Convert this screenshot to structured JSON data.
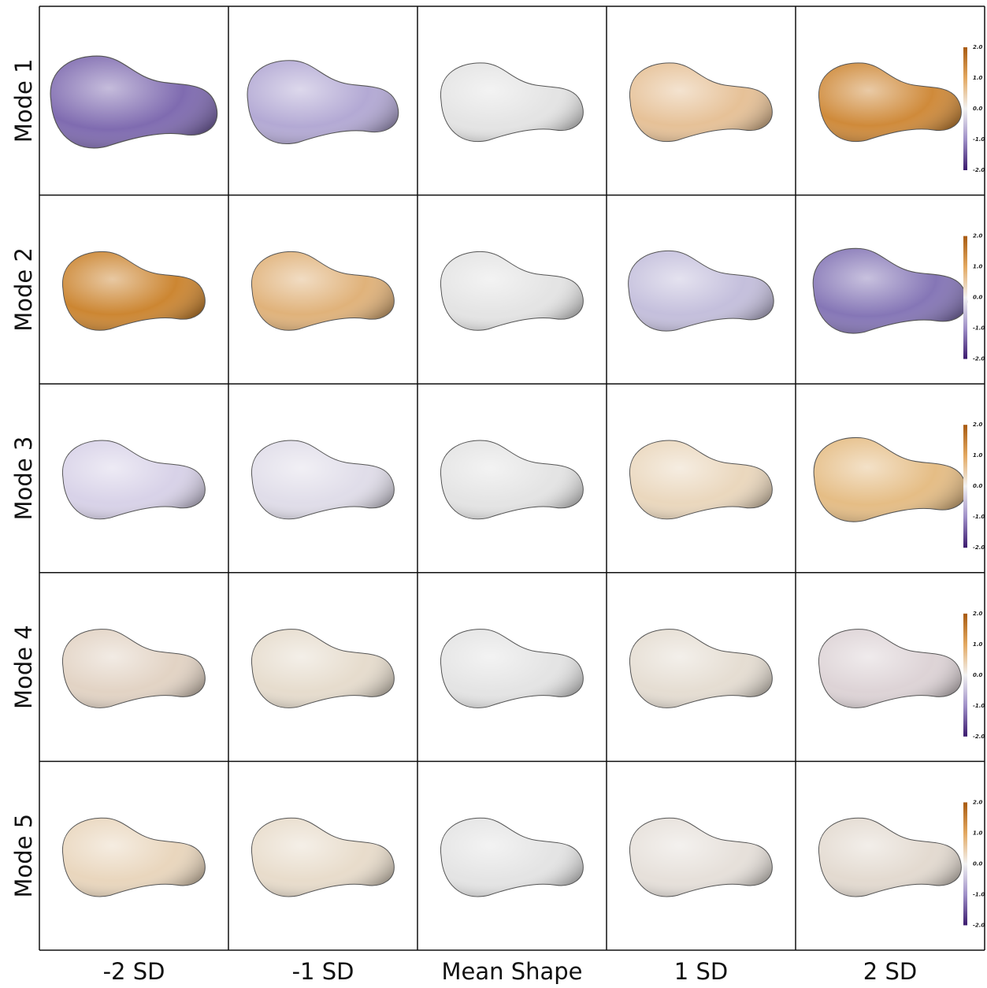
{
  "rows": [
    {
      "label": "Mode 1"
    },
    {
      "label": "Mode 2"
    },
    {
      "label": "Mode 3"
    },
    {
      "label": "Mode 4"
    },
    {
      "label": "Mode 5"
    }
  ],
  "columns": [
    "-2 SD",
    "-1 SD",
    "Mean Shape",
    "1 SD",
    "2 SD"
  ],
  "colorbar": {
    "ticks": [
      "2.0",
      "1.0",
      "0.0",
      "-1.0",
      "-2.0"
    ]
  }
}
